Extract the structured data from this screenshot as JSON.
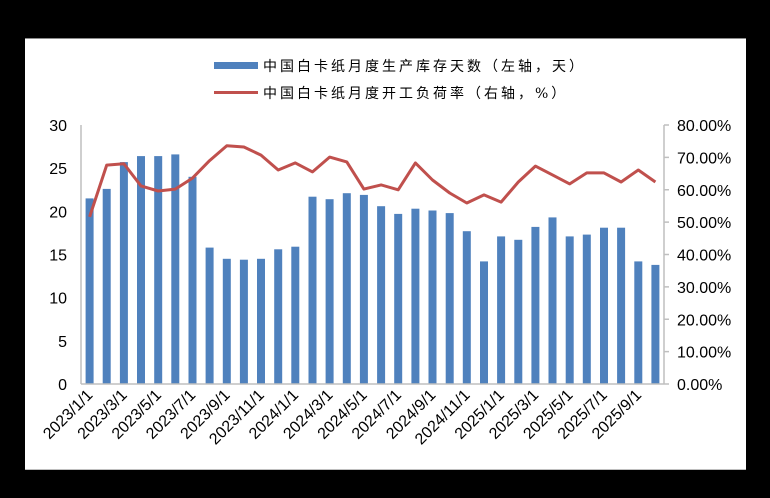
{
  "chart_data": {
    "type": "bar+line",
    "title": "",
    "colors": {
      "bar": "#4f81bd",
      "line": "#c0504d",
      "axis": "#bfbfbf",
      "background": "#ffffff",
      "outer": "#000000"
    },
    "legend": {
      "position": "top",
      "entries": [
        {
          "label": "中国白卡纸月度生产库存天数（左轴，天）",
          "type": "bar",
          "color": "#4f81bd"
        },
        {
          "label": "中国白卡纸月度开工负荷率（右轴，%）",
          "type": "line",
          "color": "#c0504d"
        }
      ]
    },
    "x": [
      "2023/1/1",
      "2023/2/1",
      "2023/3/1",
      "2023/4/1",
      "2023/5/1",
      "2023/6/1",
      "2023/7/1",
      "2023/8/1",
      "2023/9/1",
      "2023/10/1",
      "2023/11/1",
      "2023/12/1",
      "2024/1/1",
      "2024/2/1",
      "2024/3/1",
      "2024/4/1",
      "2024/5/1",
      "2024/6/1",
      "2024/7/1",
      "2024/8/1",
      "2024/9/1",
      "2024/10/1",
      "2024/11/1",
      "2024/12/1",
      "2025/1/1",
      "2025/2/1",
      "2025/3/1",
      "2025/4/1",
      "2025/5/1",
      "2025/6/1",
      "2025/7/1",
      "2025/8/1",
      "2025/9/1",
      "2025/10/1"
    ],
    "x_tick_labels": [
      "2023/1/1",
      "2023/3/1",
      "2023/5/1",
      "2023/7/1",
      "2023/9/1",
      "2023/11/1",
      "2024/1/1",
      "2024/3/1",
      "2024/5/1",
      "2024/7/1",
      "2024/9/1",
      "2024/11/1",
      "2025/1/1",
      "2025/3/1",
      "2025/5/1",
      "2025/7/1",
      "2025/9/1"
    ],
    "series": [
      {
        "name": "中国白卡纸月度生产库存天数（左轴，天）",
        "type": "bar",
        "axis": "left",
        "values": [
          21.5,
          22.6,
          25.7,
          26.4,
          26.4,
          26.6,
          24.0,
          15.8,
          14.5,
          14.4,
          14.5,
          15.6,
          15.9,
          21.7,
          21.4,
          22.1,
          21.9,
          20.6,
          19.7,
          20.3,
          20.1,
          19.8,
          17.7,
          14.2,
          17.1,
          16.7,
          18.2,
          19.3,
          17.1,
          17.3,
          18.1,
          18.1,
          14.2,
          13.8
        ]
      },
      {
        "name": "中国白卡纸月度开工负荷率（右轴，%）",
        "type": "line",
        "axis": "right",
        "values": [
          51.6,
          67.6,
          68.0,
          61.2,
          59.6,
          60.2,
          63.6,
          69.0,
          73.6,
          73.2,
          70.7,
          66.1,
          68.3,
          65.5,
          70.1,
          68.6,
          60.2,
          61.5,
          60.0,
          68.3,
          63.0,
          59.0,
          55.9,
          58.4,
          56.2,
          62.4,
          67.3,
          64.6,
          61.8,
          65.2,
          65.2,
          62.4,
          66.1,
          62.4
        ]
      }
    ],
    "left_axis": {
      "label": "",
      "ylim": [
        0,
        30
      ],
      "ticks": [
        "0",
        "5",
        "10",
        "15",
        "20",
        "25",
        "30"
      ]
    },
    "right_axis": {
      "label": "",
      "ylim": [
        0,
        80
      ],
      "ticks": [
        "0.00%",
        "10.00%",
        "20.00%",
        "30.00%",
        "40.00%",
        "50.00%",
        "60.00%",
        "70.00%",
        "80.00%"
      ]
    },
    "grid": false
  }
}
